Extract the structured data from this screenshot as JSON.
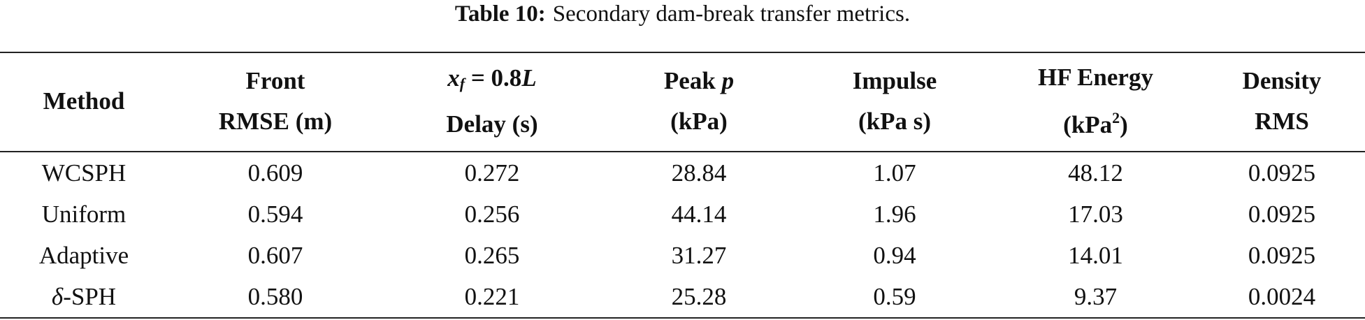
{
  "caption": {
    "label": "Table 10:",
    "text": "Secondary dam-break transfer metrics."
  },
  "table": {
    "header": [
      [
        [
          "Method"
        ]
      ],
      [
        [
          "Front"
        ],
        [
          "RMSE (m)"
        ]
      ],
      [
        [
          "x",
          "f",
          " = 0.8",
          "L"
        ],
        [
          "Delay (s)"
        ]
      ],
      [
        [
          "Peak ",
          "p"
        ],
        [
          "(kPa)"
        ]
      ],
      [
        [
          "Impulse"
        ],
        [
          "(kPa s)"
        ]
      ],
      [
        [
          "HF Energy"
        ],
        [
          "(kPa",
          "2",
          ")"
        ]
      ],
      [
        [
          "Density"
        ],
        [
          "RMS"
        ]
      ]
    ],
    "rows": [
      [
        [
          "WCSPH"
        ],
        "0.609",
        "0.272",
        "28.84",
        "1.07",
        "48.12",
        "0.0925"
      ],
      [
        [
          "Uniform"
        ],
        "0.594",
        "0.256",
        "44.14",
        "1.96",
        "17.03",
        "0.0925"
      ],
      [
        [
          "Adaptive"
        ],
        "0.607",
        "0.265",
        "31.27",
        "0.94",
        "14.01",
        "0.0925"
      ],
      [
        [
          "δ",
          "-SPH"
        ],
        "0.580",
        "0.221",
        "25.28",
        "0.59",
        "9.37",
        "0.0024"
      ]
    ]
  }
}
